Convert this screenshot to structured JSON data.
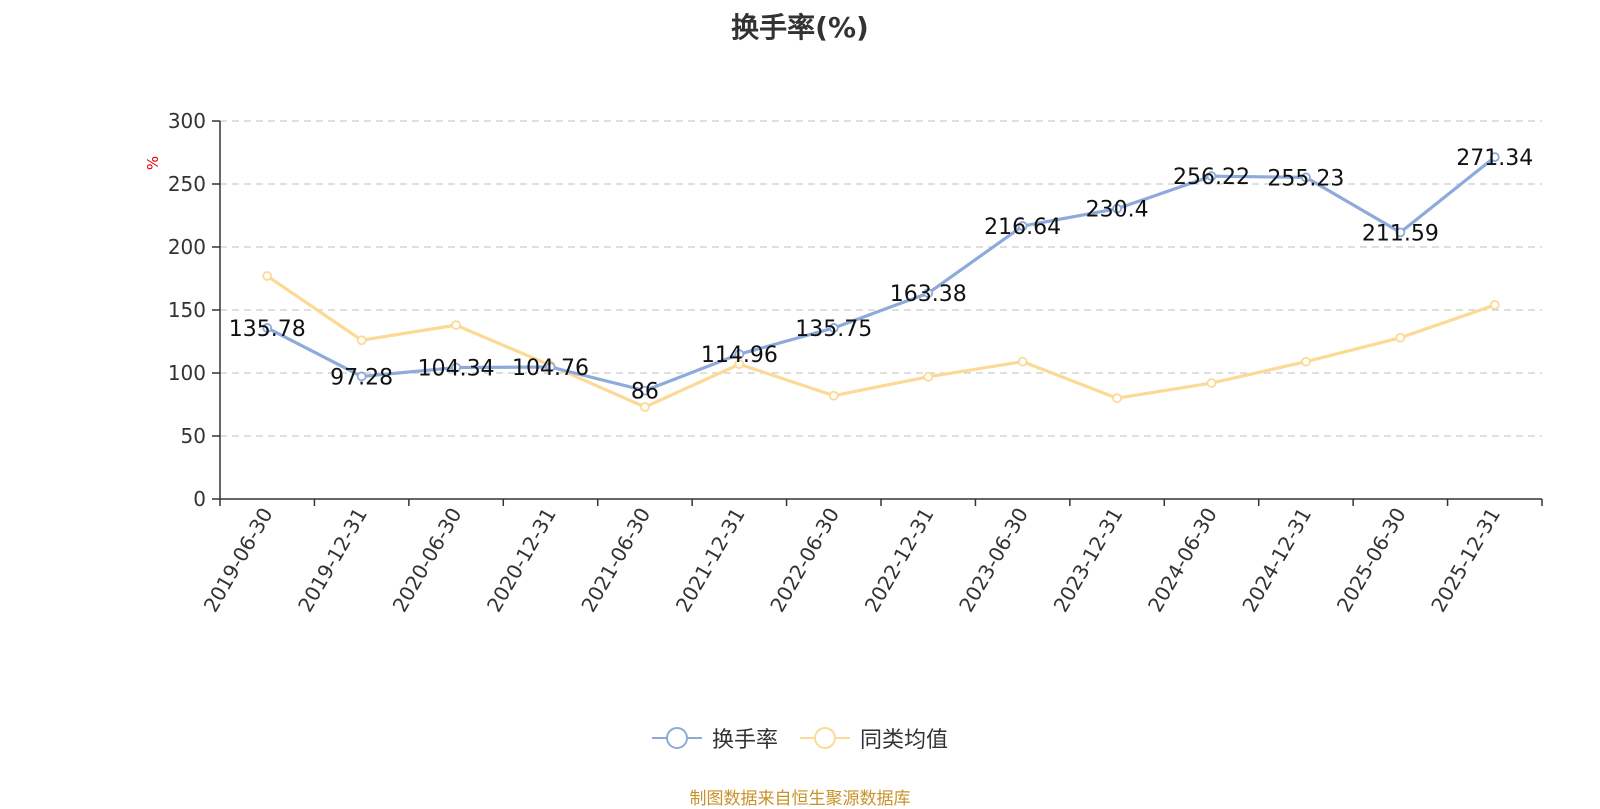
{
  "source_note": "制图数据来自恒生聚源数据库",
  "chart_data": {
    "type": "line",
    "title": "换手率(%)",
    "ylabel": "%",
    "xlabel": "",
    "ylim": [
      0,
      300
    ],
    "yticks": [
      "0",
      "50",
      "100",
      "150",
      "200",
      "250",
      "300"
    ],
    "grid": true,
    "legend_position": "bottom",
    "categories": [
      "2019-06-30",
      "2019-12-31",
      "2020-06-30",
      "2020-12-31",
      "2021-06-30",
      "2021-12-31",
      "2022-06-30",
      "2022-12-31",
      "2023-06-30",
      "2023-12-31",
      "2024-06-30",
      "2024-12-31",
      "2025-06-30",
      "2025-12-31"
    ],
    "series": [
      {
        "name": "换手率",
        "color": "#8eaadb",
        "values": [
          135.78,
          97.28,
          104.34,
          104.76,
          86,
          114.96,
          135.75,
          163.38,
          216.64,
          230.4,
          256.22,
          255.23,
          211.59,
          271.34
        ],
        "labels": [
          "135.78",
          "97.28",
          "104.34",
          "104.76",
          "86",
          "114.96",
          "135.75",
          "163.38",
          "216.64",
          "230.4",
          "256.22",
          "255.23",
          "211.59",
          "271.34"
        ]
      },
      {
        "name": "同类均值",
        "color": "#fdd996",
        "values": [
          177,
          126,
          138,
          106,
          73,
          107,
          82,
          97,
          109,
          80,
          92,
          109,
          128,
          154
        ]
      }
    ]
  }
}
